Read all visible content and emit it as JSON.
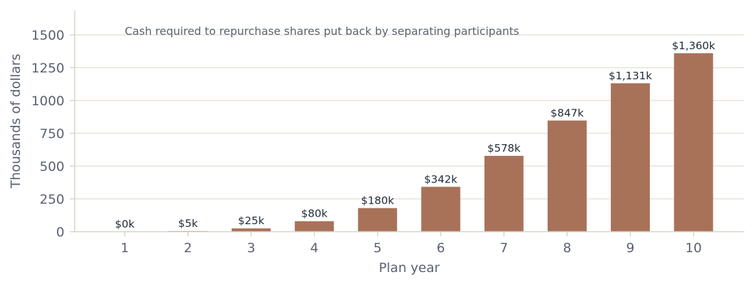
{
  "chart_data": {
    "type": "bar",
    "title": "",
    "annotation": "Cash required to repurchase shares put back by separating participants",
    "xlabel": "Plan year",
    "ylabel": "Thousands of dollars",
    "categories": [
      "1",
      "2",
      "3",
      "4",
      "5",
      "6",
      "7",
      "8",
      "9",
      "10"
    ],
    "values": [
      0,
      5,
      25,
      80,
      180,
      342,
      578,
      847,
      1131,
      1360
    ],
    "data_labels": [
      "$0k",
      "$5k",
      "$25k",
      "$80k",
      "$180k",
      "$342k",
      "$578k",
      "$847k",
      "$1,131k",
      "$1,360k"
    ],
    "yticks": [
      0,
      250,
      500,
      750,
      1000,
      1250,
      1500
    ],
    "ylim": [
      0,
      1650
    ],
    "grid": "horizontal",
    "legend": "none",
    "colors": {
      "bar": "#a87259",
      "grid": "#e8e4d8",
      "axis": "#d9d4c4"
    }
  }
}
